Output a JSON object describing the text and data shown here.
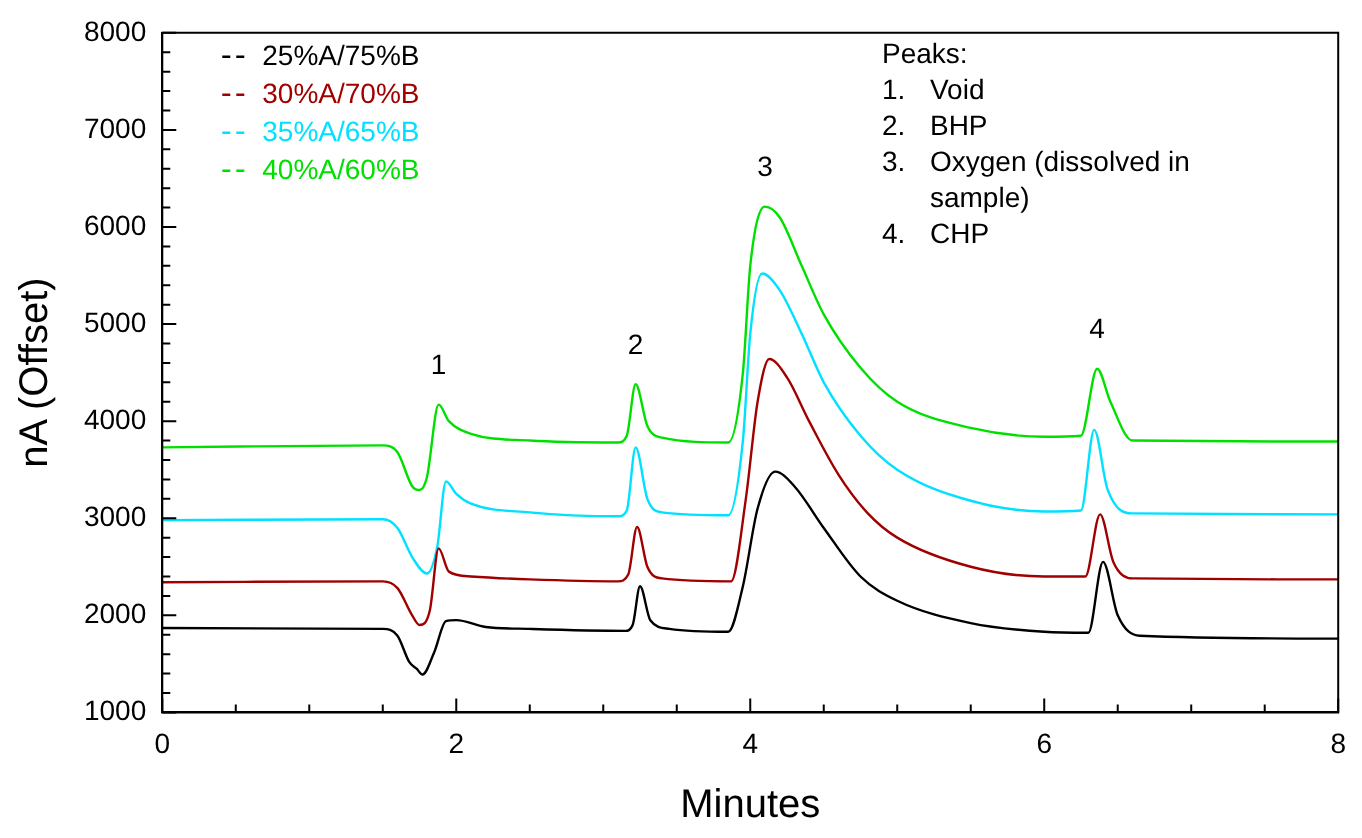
{
  "chart_data": {
    "type": "line",
    "xlabel": "Minutes",
    "ylabel": "nA (Offset)",
    "xlim": [
      0,
      8
    ],
    "xticks": [
      0,
      {
        "value": 0.5,
        "label": null
      },
      {
        "value": 1,
        "label": null
      },
      {
        "value": 1.5,
        "label": null
      },
      2,
      {
        "value": 2.5,
        "label": null
      },
      {
        "value": 3,
        "label": null
      },
      {
        "value": 3.5,
        "label": null
      },
      4,
      {
        "value": 4.5,
        "label": null
      },
      {
        "value": 5,
        "label": null
      },
      {
        "value": 5.5,
        "label": null
      },
      6,
      {
        "value": 6.5,
        "label": null
      },
      {
        "value": 7,
        "label": null
      },
      {
        "value": 7.5,
        "label": null
      },
      8
    ],
    "ylim": [
      1000,
      8000
    ],
    "yticks": [
      1000,
      {
        "value": 1200,
        "label": null
      },
      {
        "value": 1400,
        "label": null
      },
      {
        "value": 1600,
        "label": null
      },
      {
        "value": 1800,
        "label": null
      },
      2000,
      {
        "value": 2200,
        "label": null
      },
      {
        "value": 2400,
        "label": null
      },
      {
        "value": 2600,
        "label": null
      },
      {
        "value": 2800,
        "label": null
      },
      3000,
      {
        "value": 3200,
        "label": null
      },
      {
        "value": 3400,
        "label": null
      },
      {
        "value": 3600,
        "label": null
      },
      {
        "value": 3800,
        "label": null
      },
      4000,
      {
        "value": 4200,
        "label": null
      },
      {
        "value": 4400,
        "label": null
      },
      {
        "value": 4600,
        "label": null
      },
      {
        "value": 4800,
        "label": null
      },
      5000,
      {
        "value": 5200,
        "label": null
      },
      {
        "value": 5400,
        "label": null
      },
      {
        "value": 5600,
        "label": null
      },
      {
        "value": 5800,
        "label": null
      },
      6000,
      {
        "value": 6200,
        "label": null
      },
      {
        "value": 6400,
        "label": null
      },
      {
        "value": 6600,
        "label": null
      },
      {
        "value": 6800,
        "label": null
      },
      7000,
      {
        "value": 7200,
        "label": null
      },
      {
        "value": 7400,
        "label": null
      },
      {
        "value": 7600,
        "label": null
      },
      {
        "value": 7800,
        "label": null
      },
      8000
    ],
    "grid": false,
    "legend": "top left",
    "marker": "none",
    "line_style": "solid",
    "series": [
      {
        "name": "25%A/75%B",
        "color": "#000000",
        "x": [
          0,
          1.5,
          1.6,
          1.68,
          1.73,
          1.77,
          1.85,
          1.93,
          2.0,
          2.2,
          2.5,
          3.15,
          3.2,
          3.25,
          3.32,
          3.45,
          3.85,
          3.95,
          4.05,
          4.17,
          4.3,
          4.5,
          4.75,
          5.0,
          5.5,
          6.0,
          6.3,
          6.4,
          6.5,
          6.65,
          8
        ],
        "values": [
          1870,
          1860,
          1790,
          1520,
          1450,
          1390,
          1620,
          1940,
          1950,
          1880,
          1860,
          1840,
          1900,
          2300,
          1950,
          1860,
          1830,
          2300,
          3100,
          3480,
          3330,
          2900,
          2400,
          2150,
          1920,
          1830,
          1820,
          2550,
          2000,
          1790,
          1760
        ]
      },
      {
        "name": "30%A/70%B",
        "color": "#a00000",
        "x": [
          0,
          1.5,
          1.6,
          1.7,
          1.75,
          1.82,
          1.88,
          1.95,
          2.1,
          2.5,
          3.1,
          3.17,
          3.23,
          3.3,
          3.4,
          3.87,
          3.97,
          4.05,
          4.13,
          4.25,
          4.4,
          4.6,
          4.8,
          5.0,
          5.5,
          6.0,
          6.28,
          6.38,
          6.47,
          6.6,
          8
        ],
        "values": [
          2340,
          2350,
          2280,
          2000,
          1900,
          2050,
          2690,
          2450,
          2400,
          2370,
          2350,
          2420,
          2910,
          2500,
          2380,
          2350,
          3200,
          4200,
          4640,
          4450,
          4000,
          3450,
          3050,
          2800,
          2500,
          2400,
          2400,
          3040,
          2550,
          2380,
          2370
        ]
      },
      {
        "name": "35%A/65%B",
        "color": "#00e0ff",
        "x": [
          0,
          1.5,
          1.6,
          1.7,
          1.8,
          1.87,
          1.93,
          2.0,
          2.1,
          2.5,
          3.1,
          3.16,
          3.22,
          3.3,
          3.4,
          3.85,
          3.95,
          4.0,
          4.08,
          4.2,
          4.35,
          4.5,
          4.75,
          5.0,
          5.5,
          6.0,
          6.25,
          6.34,
          6.43,
          6.6,
          8
        ],
        "values": [
          2980,
          2990,
          2900,
          2600,
          2430,
          2700,
          3380,
          3250,
          3150,
          3060,
          3020,
          3080,
          3730,
          3200,
          3060,
          3030,
          3800,
          4900,
          5520,
          5350,
          4900,
          4400,
          3850,
          3500,
          3180,
          3070,
          3080,
          3910,
          3300,
          3050,
          3040
        ]
      },
      {
        "name": "40%A/60%B",
        "color": "#00e000",
        "x": [
          0,
          1.5,
          1.6,
          1.7,
          1.75,
          1.8,
          1.88,
          1.95,
          2.1,
          2.5,
          3.1,
          3.16,
          3.22,
          3.3,
          3.4,
          3.85,
          3.95,
          4.0,
          4.1,
          4.2,
          4.35,
          4.5,
          4.75,
          5.0,
          5.5,
          6.0,
          6.25,
          6.36,
          6.45,
          6.6,
          8
        ],
        "values": [
          3730,
          3750,
          3680,
          3330,
          3290,
          3420,
          4170,
          4000,
          3870,
          3800,
          3780,
          3850,
          4380,
          3950,
          3830,
          3780,
          4500,
          5600,
          6210,
          6100,
          5600,
          5100,
          4550,
          4200,
          3930,
          3840,
          3850,
          4540,
          4200,
          3800,
          3790
        ]
      }
    ],
    "annotations": [
      {
        "text": "1",
        "x": 1.88,
        "y": 4170
      },
      {
        "text": "2",
        "x": 3.22,
        "y": 4380
      },
      {
        "text": "3",
        "x": 4.1,
        "y": 6210
      },
      {
        "text": "4",
        "x": 6.36,
        "y": 4540
      },
      "Peaks:",
      "1.\tVoid",
      "2.\tBHP",
      "3.\tOxygen (dissolved in sample)",
      "4.\tCHP"
    ]
  }
}
